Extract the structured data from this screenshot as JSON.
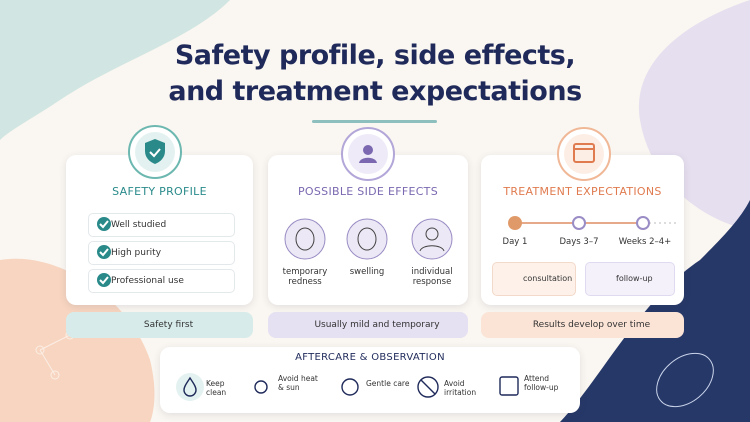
{
  "title": [
    "Safety profile, side effects,",
    "and treatment expectations"
  ],
  "safety_profile": {
    "heading": "SAFETY PROFILE",
    "items": [
      "Well studied",
      "High purity",
      "Professional use"
    ],
    "footer": "Safety first"
  },
  "side_effects": {
    "heading": "POSSIBLE SIDE EFFECTS",
    "items": [
      "temporary redness",
      "swelling",
      "individual response"
    ],
    "footer": "Usually mild and temporary"
  },
  "treatment_expectations": {
    "heading": "TREATMENT EXPECTATIONS",
    "timeline": [
      "Day 1",
      "Days 3–7",
      "Weeks 2–4+"
    ],
    "boxes": [
      "consultation",
      "follow-up"
    ],
    "footer": "Results develop over time"
  },
  "aftercare": {
    "heading": "AFTERCARE & OBSERVATION",
    "items": [
      "Keep clean",
      "Avoid heat & sun",
      "Gentle care",
      "Avoid irritation",
      "Attend follow-up"
    ]
  }
}
